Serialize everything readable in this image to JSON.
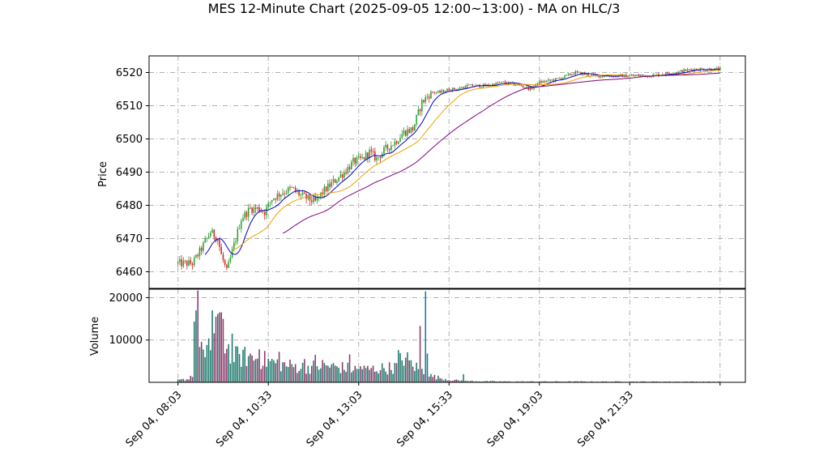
{
  "chart_data": {
    "type": "candlestick",
    "title": "MES 12-Minute Chart (2025-09-05 12:00~13:00) - MA on HLC/3",
    "price_panel": {
      "ylabel": "Price",
      "ylim": [
        6455,
        6525
      ],
      "yticks": [
        6460,
        6470,
        6480,
        6490,
        6500,
        6510,
        6520
      ],
      "grid": true
    },
    "volume_panel": {
      "ylabel": "Volume",
      "ylim": [
        0,
        22000
      ],
      "yticks": [
        10000,
        20000
      ],
      "grid": true
    },
    "xticks": [
      "Sep 04, 08:03",
      "Sep 04, 10:33",
      "Sep 04, 13:03",
      "Sep 04, 15:33",
      "Sep 04, 19:03",
      "Sep 04, 21:33",
      ""
    ],
    "x_range": [
      -16,
      314
    ],
    "xtick_positions": [
      0,
      50,
      100,
      150,
      200,
      250,
      300
    ],
    "colors": {
      "up": "#2ca02c",
      "down": "#d62728",
      "ma_short": "#0000cc",
      "ma_mid": "#f0a000",
      "ma_long": "#800080",
      "vol_up": "#1f7a6e",
      "vol_down": "#8b3a6b",
      "vol_spike": "#1f77b4"
    },
    "bars_count": 301,
    "price_path": [
      [
        0,
        6462.5
      ],
      [
        8,
        6462.5
      ],
      [
        12,
        6466
      ],
      [
        18,
        6472
      ],
      [
        22,
        6470
      ],
      [
        24,
        6465
      ],
      [
        27,
        6460
      ],
      [
        30,
        6466
      ],
      [
        35,
        6476
      ],
      [
        40,
        6479
      ],
      [
        45,
        6479
      ],
      [
        48,
        6478
      ],
      [
        52,
        6482
      ],
      [
        58,
        6484
      ],
      [
        63,
        6485
      ],
      [
        68,
        6483
      ],
      [
        72,
        6482
      ],
      [
        76,
        6481
      ],
      [
        80,
        6484
      ],
      [
        86,
        6487
      ],
      [
        92,
        6490
      ],
      [
        97,
        6493
      ],
      [
        102,
        6494
      ],
      [
        106,
        6496
      ],
      [
        110,
        6494
      ],
      [
        115,
        6497
      ],
      [
        120,
        6499
      ],
      [
        125,
        6502
      ],
      [
        130,
        6503
      ],
      [
        135,
        6511
      ],
      [
        140,
        6514
      ],
      [
        145,
        6514
      ],
      [
        150,
        6515
      ],
      [
        155,
        6515
      ],
      [
        160,
        6516
      ],
      [
        170,
        6516
      ],
      [
        180,
        6517
      ],
      [
        190,
        6516
      ],
      [
        195,
        6515
      ],
      [
        200,
        6517
      ],
      [
        210,
        6518
      ],
      [
        220,
        6520
      ],
      [
        230,
        6519
      ],
      [
        245,
        6519
      ],
      [
        260,
        6519
      ],
      [
        275,
        6520
      ],
      [
        285,
        6521
      ],
      [
        300,
        6521
      ]
    ],
    "ma_short_start": 15,
    "ma_mid_start": 30,
    "ma_long_start": 58,
    "volume_profile": [
      [
        0,
        500
      ],
      [
        6,
        800
      ],
      [
        8,
        2000
      ],
      [
        9,
        13500
      ],
      [
        11,
        15500
      ],
      [
        13,
        9000
      ],
      [
        15,
        5000
      ],
      [
        18,
        9000
      ],
      [
        20,
        13000
      ],
      [
        22,
        15000
      ],
      [
        24,
        13000
      ],
      [
        26,
        9500
      ],
      [
        28,
        8000
      ],
      [
        32,
        6000
      ],
      [
        40,
        6000
      ],
      [
        50,
        5000
      ],
      [
        60,
        4000
      ],
      [
        70,
        3500
      ],
      [
        80,
        4000
      ],
      [
        90,
        3500
      ],
      [
        100,
        3000
      ],
      [
        110,
        3200
      ],
      [
        120,
        3500
      ],
      [
        125,
        6000
      ],
      [
        130,
        4000
      ],
      [
        140,
        1500
      ],
      [
        150,
        600
      ],
      [
        160,
        300
      ],
      [
        180,
        200
      ],
      [
        300,
        150
      ]
    ],
    "volume_spikes": [
      [
        10,
        17000
      ],
      [
        19,
        17000
      ],
      [
        23,
        16500
      ],
      [
        25,
        15000
      ],
      [
        30,
        11500
      ],
      [
        45,
        7800
      ],
      [
        56,
        7200
      ],
      [
        70,
        5500
      ],
      [
        76,
        6500
      ],
      [
        95,
        6600
      ],
      [
        101,
        3800
      ],
      [
        122,
        7600
      ],
      [
        134,
        13300
      ],
      [
        138,
        6800
      ],
      [
        158,
        1900
      ]
    ],
    "volume_max_bar": [
      137,
      21500
    ]
  }
}
